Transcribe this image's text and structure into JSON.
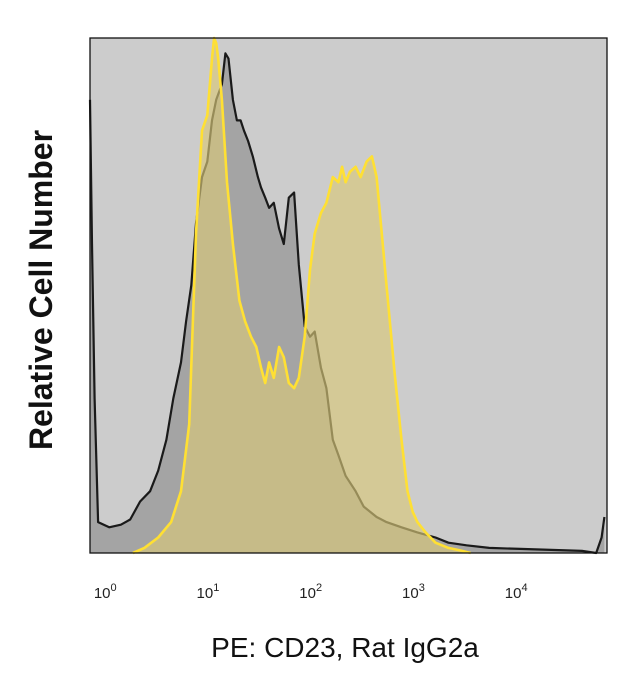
{
  "chart_data": {
    "type": "area",
    "xlabel": "PE: CD23, Rat IgG2a",
    "ylabel": "Relative Cell Number",
    "x_scale": "log",
    "xlim": [
      0.65,
      70000
    ],
    "ylim": [
      0,
      100
    ],
    "grid": false,
    "x_ticks": [
      {
        "value": 1,
        "base": "10",
        "exp": "0"
      },
      {
        "value": 10,
        "base": "10",
        "exp": "1"
      },
      {
        "value": 100,
        "base": "10",
        "exp": "2"
      },
      {
        "value": 1000,
        "base": "10",
        "exp": "3"
      },
      {
        "value": 10000,
        "base": "10",
        "exp": "4"
      }
    ],
    "colors": {
      "plot_background": "#cccccc",
      "control_fill": "#a4a4a4",
      "control_line": "#1a1a1a",
      "stained_fill": "#d8c87a",
      "stained_fill_opacity": 0.65,
      "stained_line": "#ffe033"
    },
    "series": [
      {
        "role": "control",
        "x": [
          0.65,
          0.68,
          0.72,
          0.78,
          1.0,
          1.3,
          1.6,
          2.0,
          2.5,
          3.0,
          3.6,
          4.2,
          5.0,
          5.6,
          6.3,
          7.0,
          8.0,
          9.0,
          10.0,
          11.0,
          12.5,
          13.5,
          14.5,
          16.0,
          17.5,
          19.0,
          20.5,
          22.5,
          25.0,
          28.0,
          30.0,
          33.0,
          36.0,
          40.0,
          45.0,
          50.0,
          56.0,
          63.0,
          70.0,
          80.0,
          90.0,
          100.0,
          115.0,
          130.0,
          150.0,
          170.0,
          200.0,
          250.0,
          300.0,
          400.0,
          500.0,
          700.0,
          1000.0,
          1500.0,
          2000.0,
          3000.0,
          5000.0,
          10000.0,
          20000.0,
          40000.0,
          55000.0,
          62000.0,
          66000.0
        ],
        "y": [
          88,
          60,
          30,
          6,
          5,
          5.5,
          6.5,
          10,
          12,
          16,
          22,
          30,
          37,
          45,
          52,
          64,
          73,
          76,
          84,
          88,
          91,
          97,
          96,
          88,
          84,
          84,
          82,
          80,
          77,
          73,
          71,
          69,
          67,
          68,
          63,
          60,
          69,
          70,
          56,
          44,
          42,
          43,
          36,
          32,
          22,
          19,
          15,
          12,
          9,
          7,
          6,
          5,
          4,
          3,
          2,
          1.5,
          1,
          0.8,
          0.6,
          0.4,
          0,
          3,
          7
        ]
      },
      {
        "role": "stained",
        "x": [
          1.7,
          2.2,
          3.0,
          4.0,
          5.0,
          6.0,
          7.0,
          8.0,
          9.0,
          10.0,
          10.5,
          11.0,
          11.5,
          12.5,
          14.0,
          16.0,
          18.5,
          21.0,
          24.0,
          27.0,
          30.0,
          33.0,
          36.0,
          40.0,
          45.0,
          50.0,
          56.0,
          63.0,
          70.0,
          80.0,
          90.0,
          100.0,
          115.0,
          130.0,
          150.0,
          170.0,
          185.0,
          200.0,
          220.0,
          250.0,
          280.0,
          320.0,
          360.0,
          400.0,
          450.0,
          500.0,
          600.0,
          700.0,
          800.0,
          900.0,
          1000.0,
          1200.0,
          1500.0,
          2000.0,
          2600.0,
          3300.0
        ],
        "y": [
          0,
          1,
          3,
          6,
          12,
          25,
          62,
          82,
          85,
          96,
          100,
          99,
          96,
          88,
          72,
          60,
          49,
          45,
          42,
          40,
          36,
          33,
          37,
          34,
          40,
          38,
          33,
          32,
          34,
          42,
          55,
          62,
          66,
          68,
          73,
          72,
          75,
          72,
          74,
          75,
          73,
          76,
          77,
          73,
          62,
          52,
          35,
          22,
          12,
          8,
          6,
          4,
          2,
          1,
          0.5,
          0
        ]
      }
    ]
  }
}
